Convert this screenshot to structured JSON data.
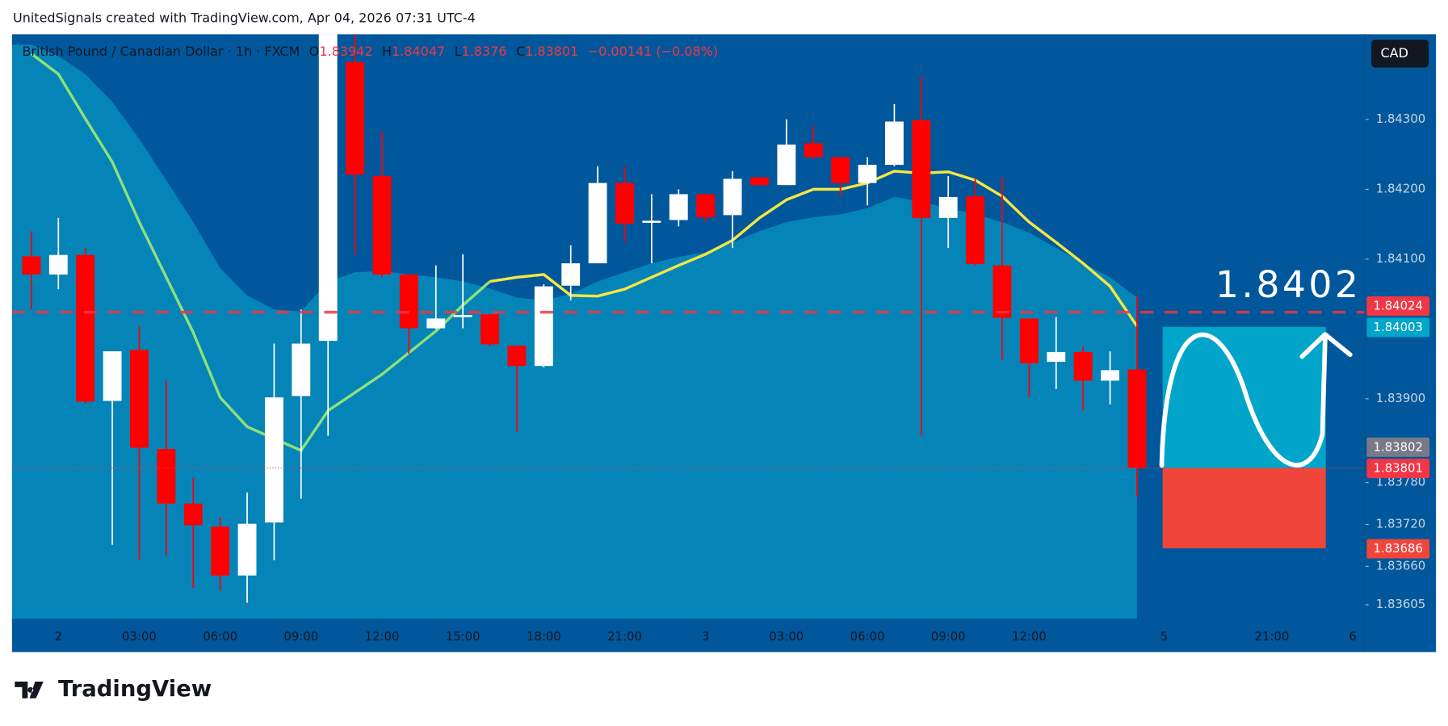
{
  "header": "UnitedSignals created with TradingView.com, Apr 04, 2026 07:31 UTC-4",
  "footer_logo": "TradingView",
  "currency_button": "CAD",
  "chart_data": {
    "type": "candlestick",
    "symbol": "British Pound / Canadian Dollar · 1h · FXCM",
    "ohlc_labels": [
      "O",
      "H",
      "L",
      "C"
    ],
    "change": "−0.00141 (−0.08%)",
    "annotation": "1.8402",
    "ylim": [
      1.83585,
      1.84422
    ],
    "yticks": [
      {
        "value": 1.843,
        "label": "1.84300"
      },
      {
        "value": 1.842,
        "label": "1.84200"
      },
      {
        "value": 1.841,
        "label": "1.84100"
      },
      {
        "value": 1.839,
        "label": "1.83900"
      },
      {
        "value": 1.8378,
        "label": "1.83780"
      },
      {
        "value": 1.8372,
        "label": "1.83720"
      },
      {
        "value": 1.8366,
        "label": "1.83660"
      },
      1.83605
    ],
    "xlim": [
      -0.72,
      49.45
    ],
    "xticks": [
      {
        "value": 1,
        "label": "2"
      },
      {
        "value": 4,
        "label": "03:00"
      },
      {
        "value": 7,
        "label": "06:00"
      },
      {
        "value": 10,
        "label": "09:00"
      },
      {
        "value": 13,
        "label": "12:00"
      },
      {
        "value": 16,
        "label": "15:00"
      },
      {
        "value": 19,
        "label": "18:00"
      },
      {
        "value": 22,
        "label": "21:00"
      },
      {
        "value": 25,
        "label": "3"
      },
      {
        "value": 28,
        "label": "03:00"
      },
      {
        "value": 31,
        "label": "06:00"
      },
      {
        "value": 34,
        "label": "09:00"
      },
      {
        "value": 37,
        "label": "12:00"
      },
      {
        "value": 42,
        "label": "5"
      },
      {
        "value": 46,
        "label": "21:00"
      },
      {
        "value": 49,
        "label": "6"
      }
    ],
    "candles": {
      "up_color": "#ffffff",
      "down_color": "#ff0000",
      "open": [
        1.84104,
        1.84078,
        1.84106,
        1.83897,
        1.8397,
        1.83828,
        1.8375,
        1.83717,
        1.83647,
        1.83723,
        1.83904,
        1.83983,
        1.84382,
        1.84219,
        1.84078,
        1.84001,
        1.84017,
        1.84021,
        1.83976,
        1.83947,
        1.84062,
        1.84094,
        1.84209,
        1.84152,
        1.84156,
        1.84193,
        1.84163,
        1.84217,
        1.84206,
        1.84266,
        1.84246,
        1.84209,
        1.84235,
        1.84299,
        1.84159,
        1.8419,
        1.84091,
        1.84015,
        1.83953,
        1.83967,
        1.83926,
        1.83942
      ],
      "high": [
        1.8414,
        1.84159,
        1.84116,
        1.83968,
        1.84004,
        1.83926,
        1.83787,
        1.83731,
        1.83766,
        1.83979,
        1.84028,
        1.84445,
        1.8444,
        1.84283,
        1.84078,
        1.84091,
        1.84107,
        1.84021,
        1.83976,
        1.84064,
        1.8412,
        1.84233,
        1.84233,
        1.84193,
        1.842,
        1.84193,
        1.84226,
        1.84217,
        1.843,
        1.84292,
        1.84246,
        1.84246,
        1.84322,
        1.84362,
        1.84219,
        1.84215,
        1.84217,
        1.84015,
        1.84017,
        1.83975,
        1.83968,
        1.84047
      ],
      "low": [
        1.84028,
        1.84057,
        1.83893,
        1.83691,
        1.83669,
        1.83675,
        1.83629,
        1.83625,
        1.83608,
        1.83669,
        1.83757,
        1.83847,
        1.84107,
        1.84074,
        1.83964,
        1.84,
        1.84001,
        1.83975,
        1.83852,
        1.83945,
        1.84041,
        1.84094,
        1.84124,
        1.84094,
        1.84147,
        1.84153,
        1.84116,
        1.84206,
        1.84206,
        1.84243,
        1.8419,
        1.84177,
        1.84233,
        1.83847,
        1.84116,
        1.84091,
        1.83955,
        1.83902,
        1.83914,
        1.83883,
        1.83892,
        1.8376
      ],
      "close": [
        1.84078,
        1.84106,
        1.83896,
        1.83968,
        1.8383,
        1.8375,
        1.83719,
        1.83647,
        1.83721,
        1.83902,
        1.83979,
        1.84431,
        1.84221,
        1.84078,
        1.84001,
        1.84015,
        1.8402,
        1.83978,
        1.83947,
        1.84061,
        1.84094,
        1.84209,
        1.84151,
        1.84155,
        1.84193,
        1.8416,
        1.84215,
        1.84206,
        1.84264,
        1.84246,
        1.84209,
        1.84235,
        1.84297,
        1.84159,
        1.84189,
        1.84093,
        1.84016,
        1.83951,
        1.83967,
        1.83926,
        1.83941,
        1.83801
      ]
    },
    "area": {
      "color": "#0584b8",
      "values": [
        1.84407,
        1.84391,
        1.84365,
        1.84325,
        1.84272,
        1.84213,
        1.84153,
        1.84087,
        1.84048,
        1.84028,
        1.84025,
        1.84068,
        1.84081,
        1.84083,
        1.84078,
        1.84074,
        1.84068,
        1.84058,
        1.84045,
        1.84041,
        1.8405,
        1.84068,
        1.84081,
        1.84094,
        1.84103,
        1.8411,
        1.84124,
        1.8414,
        1.84153,
        1.8416,
        1.84164,
        1.84173,
        1.84189,
        1.84182,
        1.84173,
        1.84164,
        1.84153,
        1.84138,
        1.84116,
        1.84094,
        1.84074,
        1.84045
      ]
    },
    "lines": [
      {
        "color": "#8ee07a",
        "values": [
          1.84394,
          1.84365,
          1.84301,
          1.84239,
          1.84153,
          1.84074,
          1.83995,
          1.83902,
          1.8386,
          1.83843,
          1.83826,
          1.83883,
          1.83909,
          1.83935,
          1.83966,
          1.83997,
          1.84034,
          1.84068,
          null,
          null,
          null,
          null,
          null,
          null,
          null,
          null,
          null,
          null,
          null,
          null,
          null,
          null,
          null,
          null,
          null,
          null,
          null,
          null,
          null,
          null,
          null,
          null
        ]
      },
      {
        "color": "#f5e642",
        "values": [
          null,
          null,
          null,
          null,
          null,
          null,
          null,
          null,
          null,
          null,
          null,
          null,
          null,
          null,
          null,
          null,
          null,
          1.84068,
          1.84074,
          1.84078,
          1.84048,
          1.84047,
          1.84057,
          1.84074,
          1.84091,
          1.84107,
          1.84127,
          1.84159,
          1.84185,
          1.842,
          1.842,
          1.84209,
          1.84226,
          1.84223,
          1.84225,
          1.84213,
          1.8419,
          1.84153,
          1.84124,
          1.84094,
          1.84061,
          1.84004
        ]
      }
    ],
    "price_labels": [
      {
        "value": 1.84024,
        "color": "#f23645"
      },
      {
        "value": 1.84003,
        "color": "#00a5c9"
      },
      {
        "value": 1.83802,
        "color": "#787b86"
      },
      {
        "value": 1.83801,
        "color": "#f23645"
      },
      {
        "value": 1.83686,
        "color": "#f0453a"
      }
    ]
  }
}
